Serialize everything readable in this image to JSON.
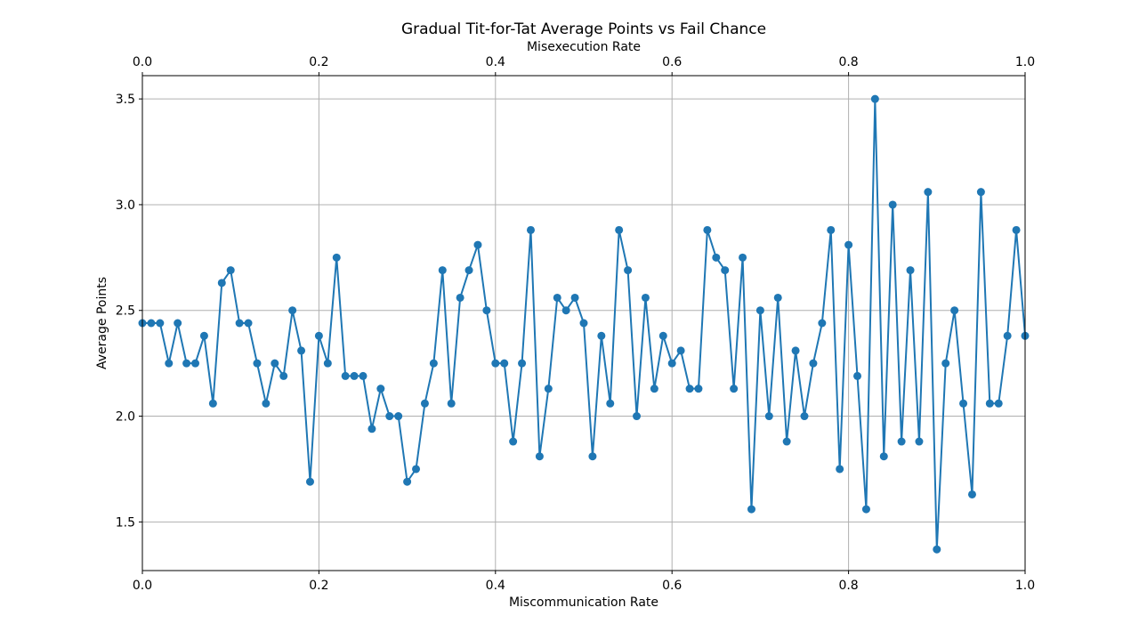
{
  "chart_data": {
    "type": "line",
    "title": "Gradual Tit-for-Tat Average Points vs Fail Chance",
    "xlabel": "Miscommunication Rate",
    "ylabel": "Average Points",
    "top_xlabel": "Misexecution Rate",
    "xlim": [
      0,
      1
    ],
    "ylim": [
      1.27,
      3.61
    ],
    "x_ticks": [
      "0.0",
      "0.2",
      "0.4",
      "0.6",
      "0.8",
      "1.0"
    ],
    "top_x_ticks": [
      "0.0",
      "0.2",
      "0.4",
      "0.6",
      "0.8",
      "1.0"
    ],
    "y_ticks": [
      "1.5",
      "2.0",
      "2.5",
      "3.0",
      "3.5"
    ],
    "grid": true,
    "series_color": "#1f77b4",
    "series": [
      {
        "name": "",
        "x": [
          0.0,
          0.01,
          0.02,
          0.03,
          0.04,
          0.05,
          0.06,
          0.07,
          0.08,
          0.09,
          0.1,
          0.11,
          0.12,
          0.13,
          0.14,
          0.15,
          0.16,
          0.17,
          0.18,
          0.19,
          0.2,
          0.21,
          0.22,
          0.23,
          0.24,
          0.25,
          0.26,
          0.27,
          0.28,
          0.29,
          0.3,
          0.31,
          0.32,
          0.33,
          0.34,
          0.35,
          0.36,
          0.37,
          0.38,
          0.39,
          0.4,
          0.41,
          0.42,
          0.43,
          0.44,
          0.45,
          0.46,
          0.47,
          0.48,
          0.49,
          0.5,
          0.51,
          0.52,
          0.53,
          0.54,
          0.55,
          0.56,
          0.57,
          0.58,
          0.59,
          0.6,
          0.61,
          0.62,
          0.63,
          0.64,
          0.65,
          0.66,
          0.67,
          0.68,
          0.69,
          0.7,
          0.71,
          0.72,
          0.73,
          0.74,
          0.75,
          0.76,
          0.77,
          0.78,
          0.79,
          0.8,
          0.81,
          0.82,
          0.83,
          0.84,
          0.85,
          0.86,
          0.87,
          0.88,
          0.89,
          0.9,
          0.91,
          0.92,
          0.93,
          0.94,
          0.95,
          0.96,
          0.97,
          0.98,
          0.99,
          1.0
        ],
        "y": [
          2.44,
          2.44,
          2.44,
          2.25,
          2.44,
          2.25,
          2.25,
          2.38,
          2.06,
          2.63,
          2.69,
          2.44,
          2.44,
          2.25,
          2.06,
          2.25,
          2.19,
          2.5,
          2.31,
          1.69,
          2.38,
          2.25,
          2.75,
          2.19,
          2.19,
          2.19,
          1.94,
          2.13,
          2.0,
          2.0,
          1.69,
          1.75,
          2.06,
          2.25,
          2.69,
          2.06,
          2.56,
          2.69,
          2.81,
          2.5,
          2.25,
          2.25,
          1.88,
          2.25,
          2.88,
          1.81,
          2.13,
          2.56,
          2.5,
          2.56,
          2.44,
          1.81,
          2.38,
          2.06,
          2.88,
          2.69,
          2.0,
          2.56,
          2.13,
          2.38,
          2.25,
          2.31,
          2.13,
          2.13,
          2.88,
          2.75,
          2.69,
          2.13,
          2.75,
          1.56,
          2.5,
          2.0,
          2.56,
          1.88,
          2.31,
          2.0,
          2.25,
          2.44,
          2.88,
          1.75,
          2.81,
          2.19,
          1.56,
          3.5,
          1.81,
          3.0,
          1.88,
          2.69,
          1.88,
          3.06,
          1.37,
          2.25,
          2.5,
          2.06,
          1.63,
          3.06,
          2.06,
          2.06,
          2.38,
          2.88,
          2.38
        ]
      }
    ]
  }
}
